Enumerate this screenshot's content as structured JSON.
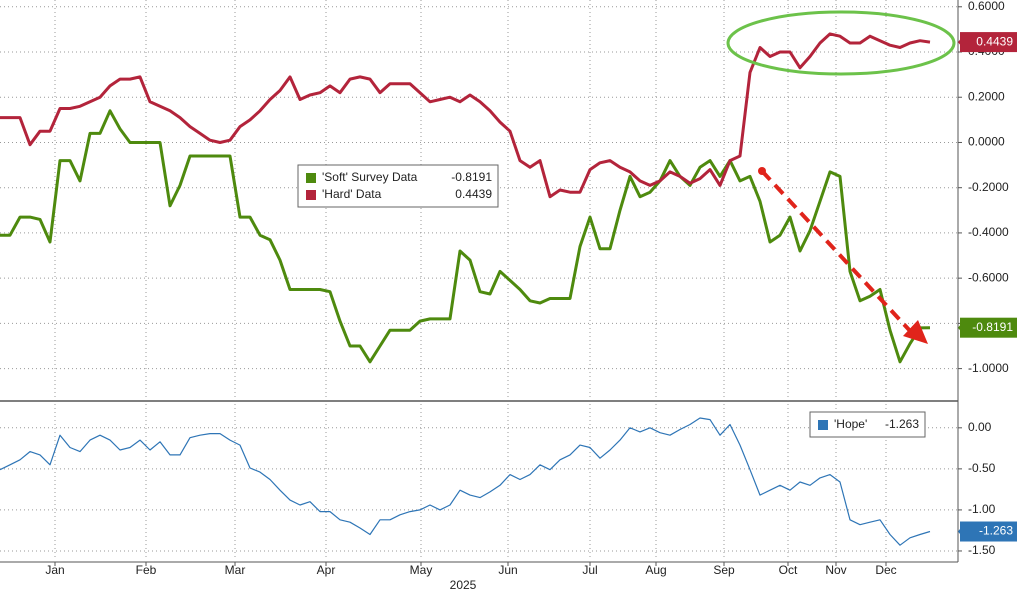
{
  "chart_data": [
    {
      "type": "line",
      "ylim": [
        -1.13,
        0.63
      ],
      "yticks": [
        {
          "value": 0.6,
          "label": "0.6000"
        },
        {
          "value": 0.4,
          "label": "0.4000"
        },
        {
          "value": 0.2,
          "label": "0.2000"
        },
        {
          "value": 0,
          "label": "0.0000"
        },
        {
          "value": -0.2,
          "label": "-0.2000"
        },
        {
          "value": -0.4,
          "label": "-0.4000"
        },
        {
          "value": -0.6,
          "label": "-0.6000"
        },
        {
          "value": -0.8,
          "label": "-0.8000"
        },
        {
          "value": -1.0,
          "label": "-1.0000"
        }
      ],
      "xlim": [
        0,
        95.8
      ],
      "grid": true,
      "series": [
        {
          "name": "'Soft' Survey Data",
          "color": "#4e8a0e",
          "values": [
            -0.41,
            -0.41,
            -0.33,
            -0.33,
            -0.34,
            -0.44,
            -0.08,
            -0.08,
            -0.17,
            0.04,
            0.04,
            0.14,
            0.06,
            0.0,
            0.0,
            0.0,
            0.0,
            -0.28,
            -0.19,
            -0.06,
            -0.06,
            -0.06,
            -0.06,
            -0.06,
            -0.33,
            -0.33,
            -0.41,
            -0.43,
            -0.52,
            -0.65,
            -0.65,
            -0.65,
            -0.65,
            -0.66,
            -0.79,
            -0.9,
            -0.9,
            -0.97,
            -0.9,
            -0.83,
            -0.83,
            -0.83,
            -0.79,
            -0.78,
            -0.78,
            -0.78,
            -0.48,
            -0.52,
            -0.66,
            -0.67,
            -0.57,
            -0.61,
            -0.65,
            -0.7,
            -0.71,
            -0.69,
            -0.69,
            -0.69,
            -0.46,
            -0.33,
            -0.47,
            -0.47,
            -0.3,
            -0.15,
            -0.24,
            -0.22,
            -0.17,
            -0.08,
            -0.15,
            -0.19,
            -0.11,
            -0.08,
            -0.15,
            -0.08,
            -0.17,
            -0.15,
            -0.26,
            -0.44,
            -0.41,
            -0.33,
            -0.48,
            -0.39,
            -0.26,
            -0.13,
            -0.15,
            -0.57,
            -0.7,
            -0.68,
            -0.65,
            -0.83,
            -0.97,
            -0.89,
            -0.82,
            -0.8191
          ]
        },
        {
          "name": "'Hard' Data",
          "color": "#b3243b",
          "values": [
            0.11,
            0.11,
            0.11,
            -0.01,
            0.05,
            0.05,
            0.15,
            0.15,
            0.16,
            0.18,
            0.2,
            0.25,
            0.28,
            0.28,
            0.29,
            0.18,
            0.16,
            0.14,
            0.11,
            0.07,
            0.04,
            0.01,
            0.0,
            0.01,
            0.07,
            0.1,
            0.14,
            0.19,
            0.23,
            0.29,
            0.19,
            0.21,
            0.22,
            0.25,
            0.22,
            0.28,
            0.29,
            0.28,
            0.22,
            0.26,
            0.26,
            0.26,
            0.22,
            0.18,
            0.19,
            0.2,
            0.18,
            0.21,
            0.18,
            0.14,
            0.09,
            0.05,
            -0.08,
            -0.11,
            -0.08,
            -0.24,
            -0.21,
            -0.22,
            -0.22,
            -0.12,
            -0.09,
            -0.08,
            -0.11,
            -0.13,
            -0.17,
            -0.19,
            -0.17,
            -0.13,
            -0.15,
            -0.18,
            -0.16,
            -0.12,
            -0.19,
            -0.08,
            -0.06,
            0.31,
            0.42,
            0.38,
            0.4,
            0.4,
            0.33,
            0.38,
            0.44,
            0.48,
            0.47,
            0.44,
            0.44,
            0.47,
            0.45,
            0.43,
            0.42,
            0.44,
            0.45,
            0.4439
          ]
        }
      ]
    },
    {
      "type": "line",
      "ylim": [
        -1.61,
        0.29
      ],
      "yticks": [
        {
          "value": 0,
          "label": "0.00"
        },
        {
          "value": -0.5,
          "label": "-0.50"
        },
        {
          "value": -1.0,
          "label": "-1.00"
        },
        {
          "value": -1.5,
          "label": "-1.50"
        }
      ],
      "xlim": [
        0,
        95.8
      ],
      "xticks": [
        {
          "value": 5.5,
          "label": "Jan"
        },
        {
          "value": 14.6,
          "label": "Feb"
        },
        {
          "value": 23.5,
          "label": "Mar"
        },
        {
          "value": 32.6,
          "label": "Apr"
        },
        {
          "value": 42.1,
          "label": "May"
        },
        {
          "value": 50.8,
          "label": "Jun"
        },
        {
          "value": 59,
          "label": "Jul"
        },
        {
          "value": 65.6,
          "label": "Aug"
        },
        {
          "value": 72.4,
          "label": "Sep"
        },
        {
          "value": 78.8,
          "label": "Oct"
        },
        {
          "value": 83.6,
          "label": "Nov"
        },
        {
          "value": 88.6,
          "label": "Dec"
        }
      ],
      "xlabel": "2025",
      "grid": true,
      "series": [
        {
          "name": "'Hope'",
          "color": "#2e75b6",
          "values": [
            -0.51,
            -0.45,
            -0.39,
            -0.29,
            -0.33,
            -0.45,
            -0.09,
            -0.24,
            -0.29,
            -0.15,
            -0.09,
            -0.15,
            -0.27,
            -0.24,
            -0.15,
            -0.27,
            -0.17,
            -0.33,
            -0.33,
            -0.12,
            -0.09,
            -0.07,
            -0.07,
            -0.15,
            -0.21,
            -0.49,
            -0.54,
            -0.63,
            -0.76,
            -0.88,
            -0.94,
            -0.9,
            -1.02,
            -1.02,
            -1.12,
            -1.15,
            -1.22,
            -1.3,
            -1.12,
            -1.12,
            -1.06,
            -1.02,
            -1.0,
            -0.94,
            -1.0,
            -0.94,
            -0.76,
            -0.82,
            -0.85,
            -0.78,
            -0.7,
            -0.57,
            -0.63,
            -0.57,
            -0.45,
            -0.51,
            -0.39,
            -0.33,
            -0.21,
            -0.24,
            -0.37,
            -0.27,
            -0.15,
            0.0,
            -0.05,
            0.0,
            -0.06,
            -0.09,
            -0.02,
            0.04,
            0.12,
            0.1,
            -0.09,
            0.04,
            -0.21,
            -0.51,
            -0.82,
            -0.76,
            -0.7,
            -0.76,
            -0.66,
            -0.7,
            -0.61,
            -0.57,
            -0.66,
            -1.12,
            -1.18,
            -1.15,
            -1.12,
            -1.3,
            -1.43,
            -1.34,
            -1.3,
            -1.263
          ]
        }
      ]
    }
  ]
}
